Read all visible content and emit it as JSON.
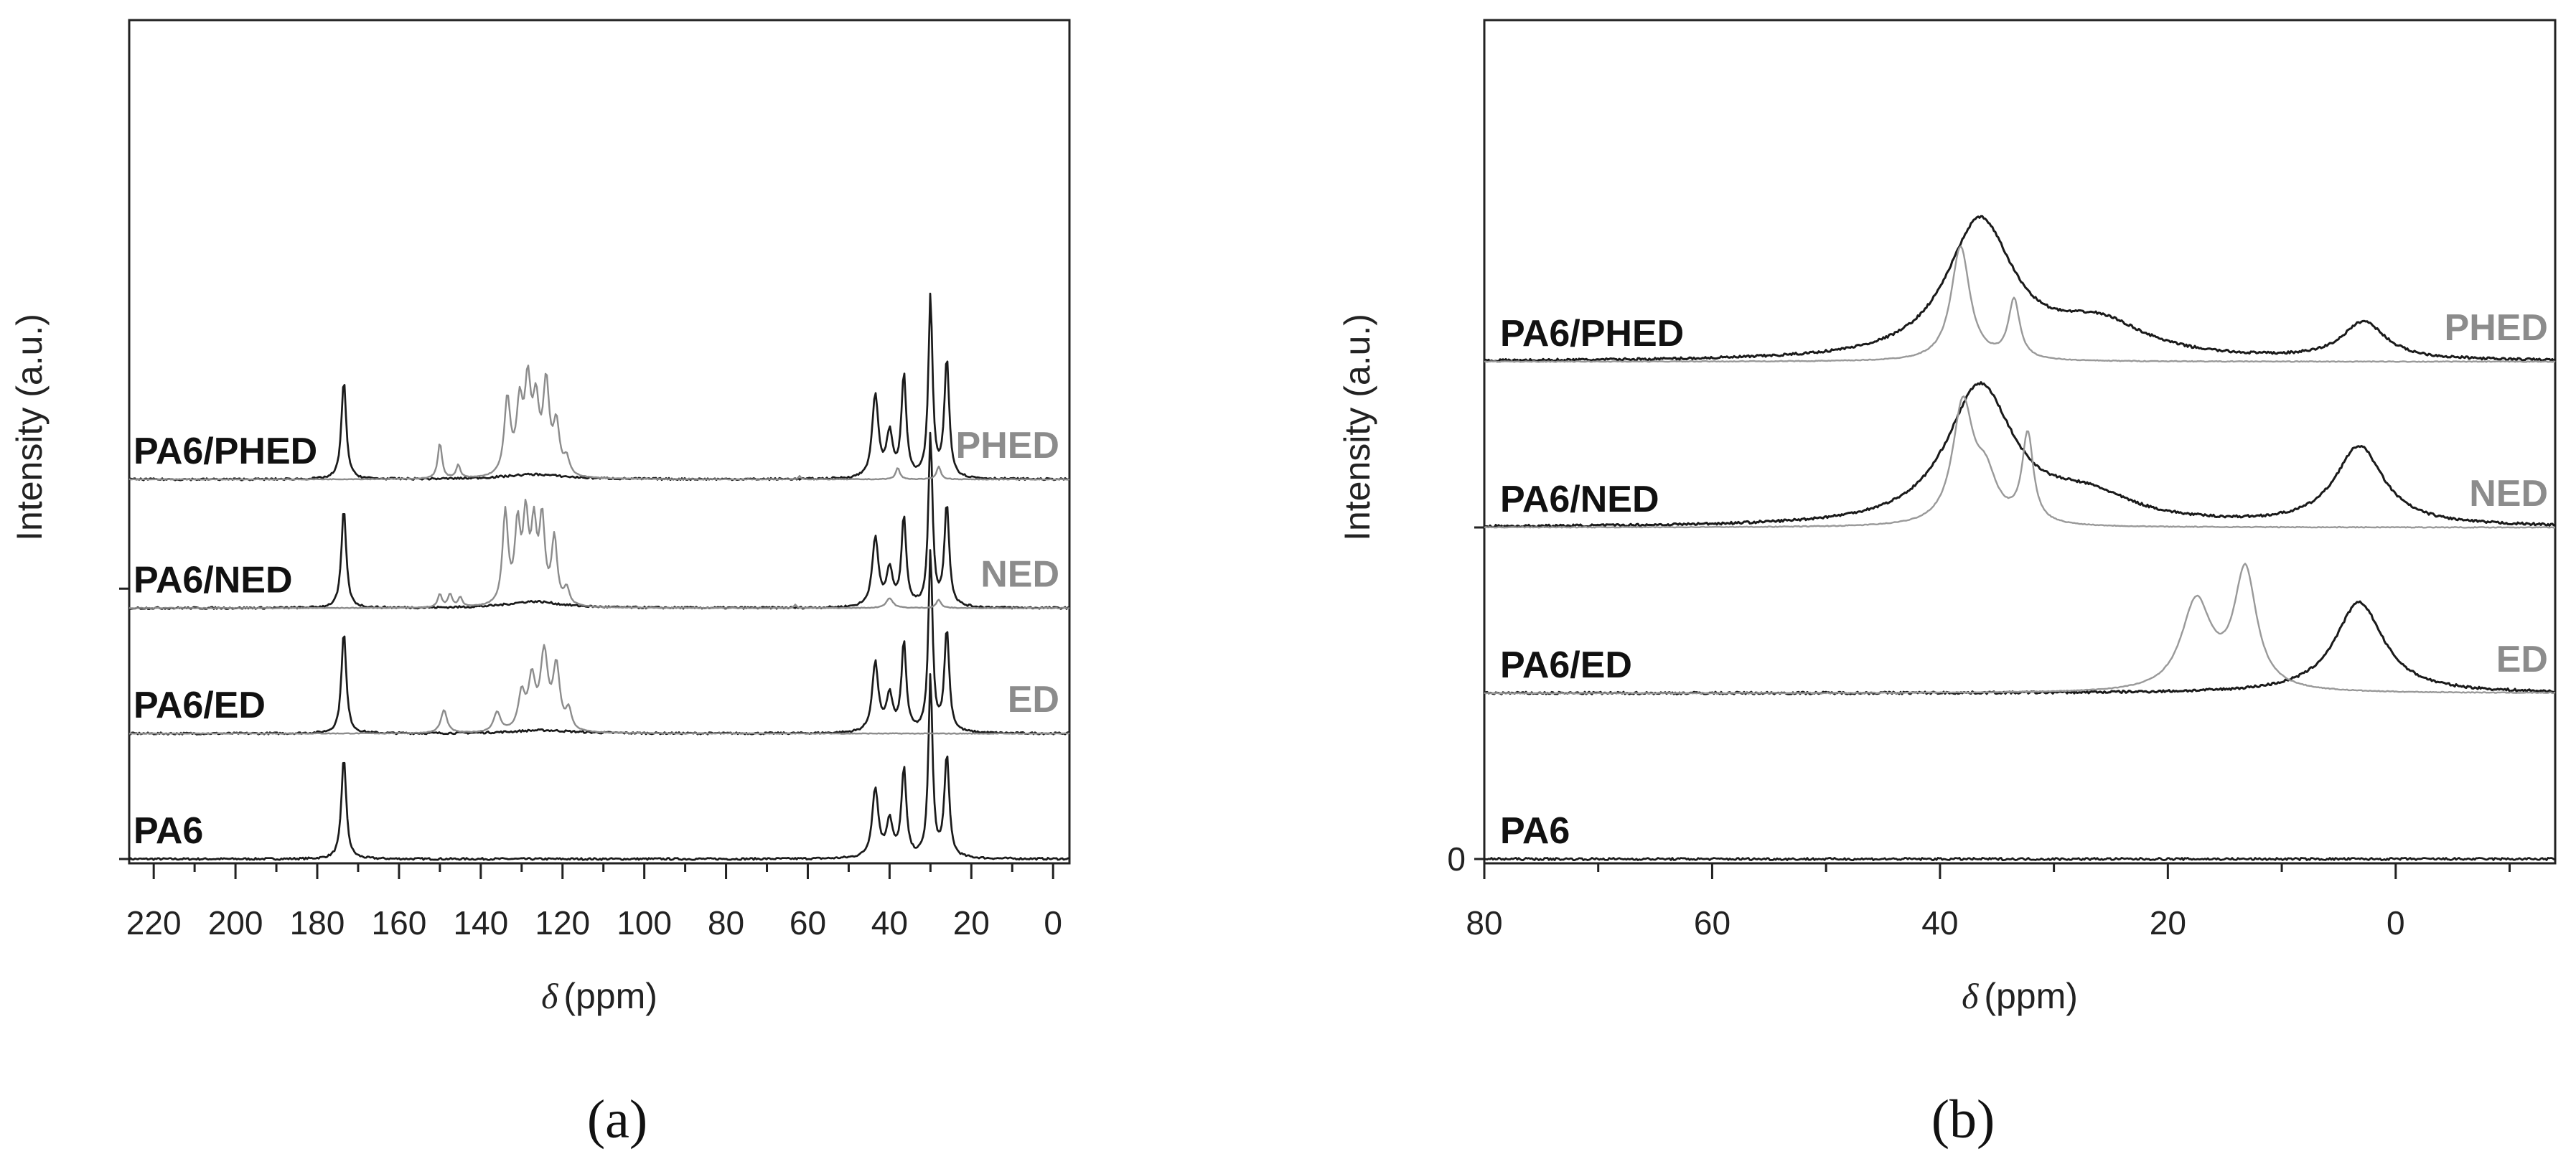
{
  "chart_data": [
    {
      "panel_label": "(a)",
      "type": "line",
      "xlabel_symbol": "δ",
      "xlabel_unit": "(ppm)",
      "ylabel": "Intensity (a.u.)",
      "x_reversed": true,
      "xlim": [
        226,
        -4
      ],
      "xticks": [
        220,
        200,
        180,
        160,
        140,
        120,
        100,
        80,
        60,
        40,
        20,
        0
      ],
      "samples": [
        {
          "name": "PA6",
          "offset": 0,
          "series": [
            {
              "color": "#1a1a1a",
              "width": 0.9,
              "peaks": [
                [
                  173.5,
                  0.62,
                  0.7
                ],
                [
                  43.5,
                  0.42,
                  0.9
                ],
                [
                  40,
                  0.22,
                  0.9
                ],
                [
                  36.5,
                  0.54,
                  0.7
                ],
                [
                  30,
                  1.1,
                  0.6
                ],
                [
                  26,
                  0.62,
                  0.7
                ]
              ]
            }
          ]
        },
        {
          "name": "PA6/ED",
          "sub_name": "ED",
          "offset": 0.76,
          "series": [
            {
              "color": "#1a1a1a",
              "width": 0.9,
              "peaks": [
                [
                  173.5,
                  0.62,
                  0.7
                ],
                [
                  43.5,
                  0.42,
                  0.9
                ],
                [
                  40,
                  0.22,
                  0.9
                ],
                [
                  36.5,
                  0.54,
                  0.7
                ],
                [
                  30,
                  1.1,
                  0.6
                ],
                [
                  26,
                  0.62,
                  0.7
                ],
                [
                  125,
                  0.02,
                  9
                ]
              ]
            },
            {
              "color": "#8c8c8c",
              "width": 0.8,
              "peaks": [
                [
                  149,
                  0.14,
                  0.9
                ],
                [
                  136,
                  0.12,
                  1
                ],
                [
                  130,
                  0.22,
                  1
                ],
                [
                  127.5,
                  0.3,
                  1
                ],
                [
                  124.5,
                  0.46,
                  1.1
                ],
                [
                  121.5,
                  0.38,
                  1
                ],
                [
                  118.5,
                  0.12,
                  0.8
                ]
              ]
            }
          ]
        },
        {
          "name": "PA6/NED",
          "sub_name": "NED",
          "offset": 1.52,
          "series": [
            {
              "color": "#1a1a1a",
              "width": 0.9,
              "peaks": [
                [
                  173.5,
                  0.6,
                  0.7
                ],
                [
                  43.5,
                  0.42,
                  0.9
                ],
                [
                  40,
                  0.22,
                  0.9
                ],
                [
                  36.5,
                  0.54,
                  0.7
                ],
                [
                  30,
                  1.05,
                  0.6
                ],
                [
                  26,
                  0.62,
                  0.7
                ],
                [
                  127,
                  0.04,
                  8
                ]
              ]
            },
            {
              "color": "#8c8c8c",
              "width": 0.8,
              "peaks": [
                [
                  150,
                  0.08,
                  0.6
                ],
                [
                  147.5,
                  0.08,
                  0.6
                ],
                [
                  145,
                  0.06,
                  0.6
                ],
                [
                  134,
                  0.56,
                  0.8
                ],
                [
                  131,
                  0.46,
                  0.8
                ],
                [
                  129,
                  0.5,
                  0.8
                ],
                [
                  127,
                  0.44,
                  0.8
                ],
                [
                  125,
                  0.5,
                  0.8
                ],
                [
                  122,
                  0.4,
                  0.8
                ],
                [
                  119,
                  0.1,
                  0.8
                ],
                [
                  40,
                  0.06,
                  1
                ],
                [
                  63,
                  0.02,
                  0.4
                ],
                [
                  28,
                  0.05,
                  0.7
                ]
              ]
            }
          ]
        },
        {
          "name": "PA6/PHED",
          "sub_name": "PHED",
          "offset": 2.3,
          "series": [
            {
              "color": "#1a1a1a",
              "width": 0.9,
              "peaks": [
                [
                  173.5,
                  0.6,
                  0.7
                ],
                [
                  43.5,
                  0.5,
                  0.9
                ],
                [
                  40,
                  0.26,
                  0.9
                ],
                [
                  36.5,
                  0.62,
                  0.7
                ],
                [
                  30,
                  1.1,
                  0.6
                ],
                [
                  26,
                  0.72,
                  0.7
                ],
                [
                  127,
                  0.03,
                  9
                ]
              ]
            },
            {
              "color": "#8c8c8c",
              "width": 0.8,
              "peaks": [
                [
                  150,
                  0.22,
                  0.6
                ],
                [
                  145.5,
                  0.08,
                  0.6
                ],
                [
                  133.5,
                  0.46,
                  0.9
                ],
                [
                  130.5,
                  0.4,
                  0.9
                ],
                [
                  128.5,
                  0.52,
                  0.9
                ],
                [
                  126.5,
                  0.4,
                  0.9
                ],
                [
                  124,
                  0.54,
                  0.9
                ],
                [
                  121.5,
                  0.3,
                  0.9
                ],
                [
                  119,
                  0.1,
                  0.8
                ],
                [
                  38,
                  0.07,
                  0.6
                ],
                [
                  28,
                  0.08,
                  0.6
                ],
                [
                  62,
                  0.02,
                  0.4
                ]
              ]
            }
          ]
        }
      ]
    },
    {
      "panel_label": "(b)",
      "type": "line",
      "xlabel_symbol": "δ",
      "xlabel_unit": "(ppm)",
      "ylabel": "Intensity (a.u.)",
      "x_reversed": true,
      "xlim": [
        80,
        -14
      ],
      "xticks": [
        80,
        60,
        40,
        20,
        0
      ],
      "y_zero_label": "0",
      "samples": [
        {
          "name": "PA6",
          "offset": 0,
          "series": [
            {
              "color": "#1a1a1a",
              "width": 0.9,
              "peaks": []
            }
          ]
        },
        {
          "name": "PA6/ED",
          "sub_name": "ED",
          "offset": 0.84,
          "series": [
            {
              "color": "#1a1a1a",
              "width": 1.0,
              "peaks": [
                [
                  3.2,
                  0.46,
                  2.6
                ]
              ]
            },
            {
              "color": "#999999",
              "width": 0.8,
              "peaks": [
                [
                  17.5,
                  0.45,
                  1.6
                ],
                [
                  13.2,
                  0.6,
                  1.2
                ]
              ]
            }
          ]
        },
        {
          "name": "PA6/NED",
          "sub_name": "NED",
          "offset": 1.68,
          "series": [
            {
              "color": "#1a1a1a",
              "width": 1.0,
              "peaks": [
                [
                  36.5,
                  0.7,
                  3.6
                ],
                [
                  27,
                  0.13,
                  5
                ],
                [
                  3.2,
                  0.4,
                  2.6
                ]
              ]
            },
            {
              "color": "#999999",
              "width": 0.8,
              "peaks": [
                [
                  38,
                  0.6,
                  1.1
                ],
                [
                  36,
                  0.22,
                  1.2
                ],
                [
                  32.3,
                  0.45,
                  0.6
                ]
              ]
            }
          ]
        },
        {
          "name": "PA6/PHED",
          "sub_name": "PHED",
          "offset": 2.52,
          "series": [
            {
              "color": "#1a1a1a",
              "width": 1.0,
              "peaks": [
                [
                  36.5,
                  0.7,
                  3.6
                ],
                [
                  26,
                  0.17,
                  5
                ],
                [
                  2.8,
                  0.19,
                  2.3
                ]
              ]
            },
            {
              "color": "#999999",
              "width": 0.8,
              "peaks": [
                [
                  38.2,
                  0.58,
                  1.0
                ],
                [
                  33.5,
                  0.3,
                  0.6
                ]
              ]
            }
          ]
        }
      ]
    }
  ]
}
